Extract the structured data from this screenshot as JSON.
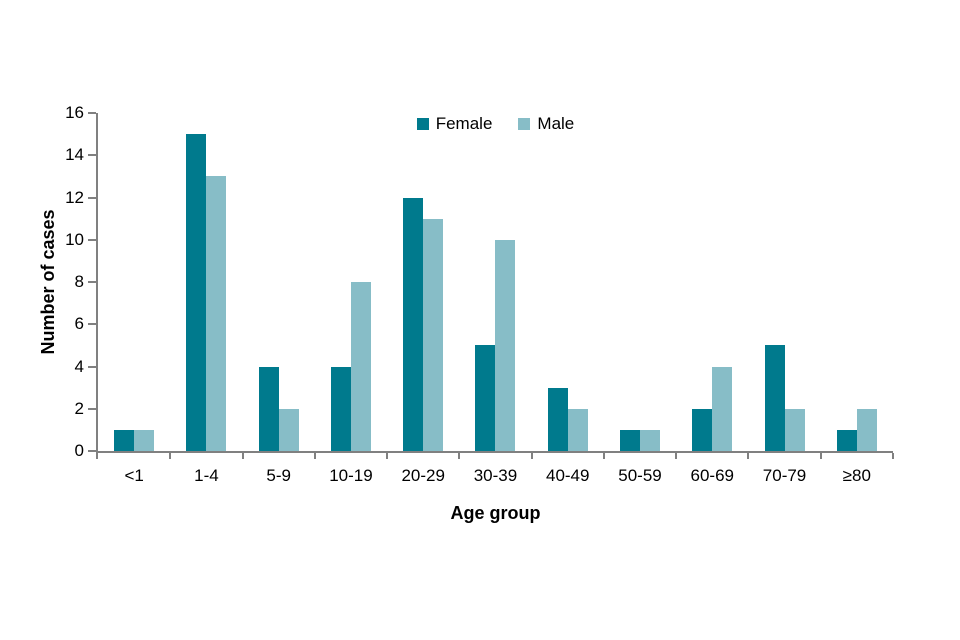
{
  "chart_data": {
    "type": "bar",
    "title": "",
    "categories": [
      "<1",
      "1-4",
      "5-9",
      "10-19",
      "20-29",
      "30-39",
      "40-49",
      "50-59",
      "60-69",
      "70-79",
      "≥80"
    ],
    "series": [
      {
        "name": "Female",
        "color": "#007A8D",
        "values": [
          1,
          15,
          4,
          4,
          12,
          5,
          3,
          1,
          2,
          5,
          1
        ]
      },
      {
        "name": "Male",
        "color": "#87BDC7",
        "values": [
          1,
          13,
          2,
          8,
          11,
          10,
          2,
          1,
          4,
          2,
          2
        ]
      }
    ],
    "xlabel": "Age group",
    "ylabel": "Number of cases",
    "ylim": [
      0,
      16
    ],
    "ytick_step": 2,
    "legend_position": "top-center",
    "grid": false,
    "axis_color": "#808080",
    "text_color": "#000000"
  }
}
